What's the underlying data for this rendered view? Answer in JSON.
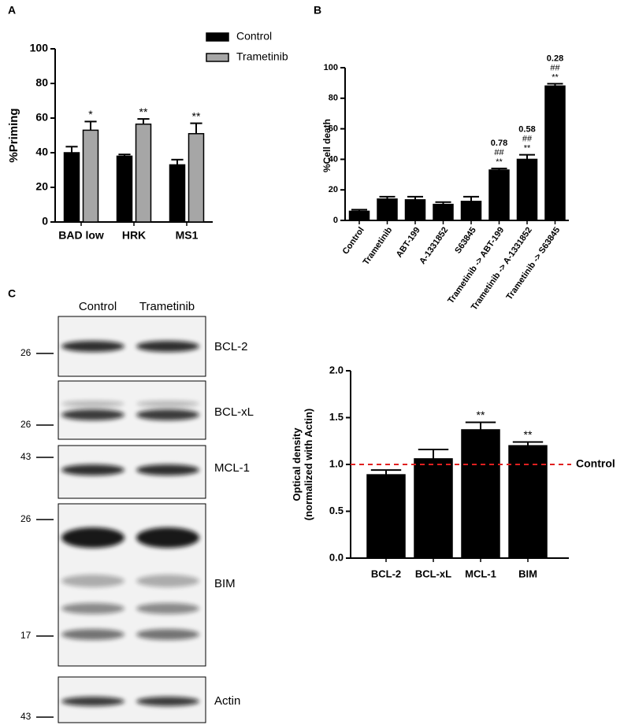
{
  "chart_data": [
    {
      "type": "bar",
      "panel": "A",
      "ylabel": "%Priming",
      "categories": [
        "BAD low",
        "HRK",
        "MS1"
      ],
      "series": [
        {
          "name": "Control",
          "color": "#000000",
          "values": [
            40,
            38,
            33
          ],
          "errors": [
            3.5,
            1,
            3
          ]
        },
        {
          "name": "Trametinib",
          "color": "#a6a6a6",
          "values": [
            53,
            56.5,
            51
          ],
          "errors": [
            5,
            3,
            6
          ],
          "annotations": [
            [
              "*"
            ],
            [
              "**"
            ],
            [
              "**"
            ]
          ]
        }
      ],
      "ylim": [
        0,
        100
      ],
      "yticks": [
        0,
        20,
        40,
        60,
        80,
        100
      ]
    },
    {
      "type": "bar",
      "panel": "B",
      "ylabel": "%Cell death",
      "categories": [
        "Control",
        "Trametinib",
        "ABT-199",
        "A-1331852",
        "S63845",
        "Trametinib -> ABT-199",
        "Trametinib -> A-1331852",
        "Trametinib -> S63845"
      ],
      "series": [
        {
          "color": "#000000",
          "values": [
            6,
            14,
            13.5,
            10.5,
            12.5,
            33,
            40,
            88
          ],
          "errors": [
            1,
            1.5,
            2,
            1.5,
            3,
            1,
            3,
            1.5
          ],
          "annotations": [
            null,
            null,
            null,
            null,
            null,
            [
              "0.78",
              "##",
              "**"
            ],
            [
              "0.58",
              "##",
              "**"
            ],
            [
              "0.28",
              "##",
              "**"
            ]
          ]
        }
      ],
      "ylim": [
        0,
        100
      ],
      "yticks": [
        0,
        20,
        40,
        60,
        80,
        100
      ]
    },
    {
      "type": "bar",
      "ylabel": [
        "Optical density",
        "(normalized with Actin)"
      ],
      "categories": [
        "BCL-2",
        "BCL-xL",
        "MCL-1",
        "BIM"
      ],
      "series": [
        {
          "color": "#000000",
          "values": [
            0.89,
            1.06,
            1.37,
            1.2
          ],
          "errors": [
            0.05,
            0.1,
            0.08,
            0.04
          ],
          "annotations": [
            null,
            null,
            [
              "**"
            ],
            [
              "**"
            ]
          ]
        }
      ],
      "reference_line": {
        "value": 1.0,
        "label": "Control",
        "color": "#e02020"
      },
      "ylim": [
        0,
        2
      ],
      "yticks": [
        {
          "value": 0,
          "label": "0.0"
        },
        {
          "value": 0.5,
          "label": "0.5"
        },
        {
          "value": 1,
          "label": "1.0"
        },
        {
          "value": 1.5,
          "label": "1.5"
        },
        {
          "value": 2,
          "label": "2.0"
        }
      ]
    }
  ],
  "blot": {
    "panel": "C",
    "columns": [
      "Control",
      "Trametinib"
    ],
    "rows": [
      {
        "label": "BCL-2",
        "markers": [
          26
        ]
      },
      {
        "label": "BCL-xL",
        "markers": [
          26
        ]
      },
      {
        "label": "MCL-1",
        "markers": [
          43
        ]
      },
      {
        "label": "BIM",
        "markers": [
          26,
          17
        ]
      },
      {
        "label": "Actin",
        "markers": [
          43
        ]
      }
    ]
  }
}
